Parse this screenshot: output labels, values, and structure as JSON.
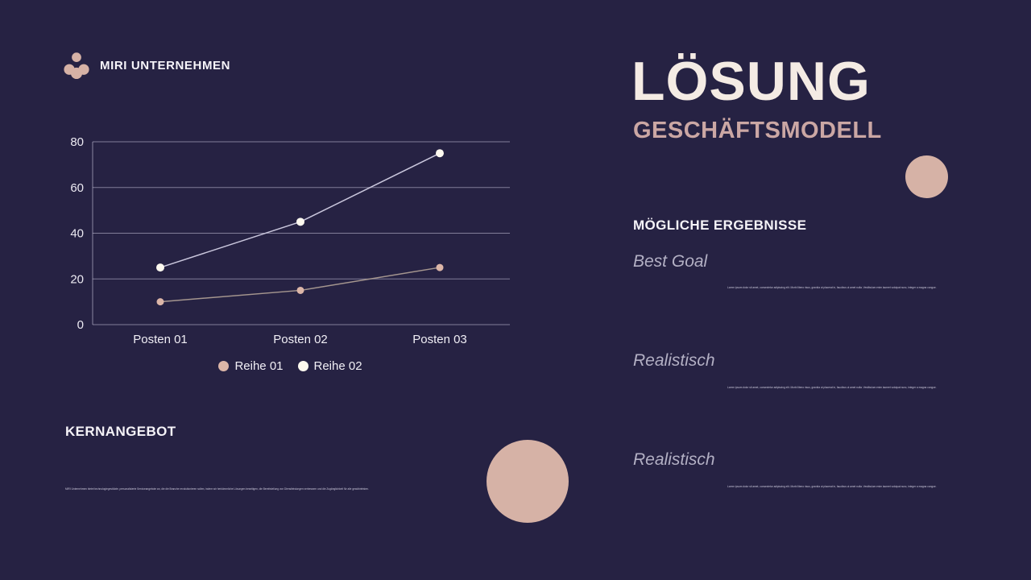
{
  "brand": {
    "name": "MIRI UNTERNEHMEN"
  },
  "title": {
    "main": "LÖSUNG",
    "subtitle": "GESCHÄFTSMODELL"
  },
  "chart_data": {
    "type": "line",
    "categories": [
      "Posten 01",
      "Posten 02",
      "Posten 03"
    ],
    "series": [
      {
        "name": "Reihe 01",
        "values": [
          10,
          15,
          25
        ],
        "dot_color": "#dcb6a8",
        "line_color": "#a5968f"
      },
      {
        "name": "Reihe 02",
        "values": [
          25,
          45,
          75
        ],
        "dot_color": "#fdf9ef",
        "line_color": "#c9c6dc"
      }
    ],
    "ylim": [
      0,
      80
    ],
    "yticks": [
      0,
      20,
      40,
      60,
      80
    ],
    "grid": true,
    "legend_position": "bottom",
    "xlabel": "",
    "ylabel": ""
  },
  "sections": {
    "results": {
      "heading": "MÖGLICHE ERGEBNISSE",
      "items": [
        {
          "label": "Best Goal",
          "body": "Lorem ipsum dolor sit amet, consectetur adipiscing elit. Morbi libero risus, gravida ut placerat in, faucibus ut amet nulla. Vestibulum enim laoreet volutpat nunc, integer a magna congue."
        },
        {
          "label": "Realistisch",
          "body": "Lorem ipsum dolor sit amet, consectetur adipiscing elit. Morbi libero risus, gravida ut placerat in, faucibus ut amet nulla. Vestibulum enim laoreet volutpat nunc, integer a magna congue."
        },
        {
          "label": "Realistisch",
          "body": "Lorem ipsum dolor sit amet, consectetur adipiscing elit. Morbi libero risus, gravida ut placerat in, faucibus ut amet nulla. Vestibulum enim laoreet volutpat nunc, integer a magna congue."
        }
      ]
    },
    "core_offer": {
      "heading": "KERNANGEBOT",
      "body": "MIRI Unternehmen bietet technologiegestützte, personalisierte Serviceangebote an, die die Branche revolutionieren sollen, indem wir herkömmliche Lösungen beseitigen, die Bereitstellung von Dienstleistungen verbessern und die Zugänglichkeit für alle gewährleisten."
    }
  },
  "colors": {
    "background": "#262243",
    "accent_rose": "#d6b2a6",
    "title_cream": "#f4ebe4",
    "subtitle_rose": "#cba7a4",
    "grid_line": "#9b98b4",
    "tick_text": "#eceaf2"
  }
}
